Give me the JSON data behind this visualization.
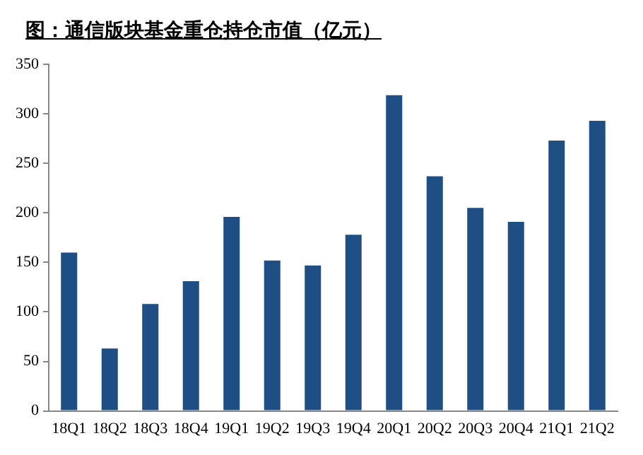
{
  "chart_data": {
    "type": "bar",
    "title": "图：通信版块基金重仓持仓市值（亿元）",
    "categories": [
      "18Q1",
      "18Q2",
      "18Q3",
      "18Q4",
      "19Q1",
      "19Q2",
      "19Q3",
      "19Q4",
      "20Q1",
      "20Q2",
      "20Q3",
      "20Q4",
      "21Q1",
      "21Q2"
    ],
    "values": [
      160,
      63,
      108,
      131,
      196,
      152,
      147,
      178,
      319,
      237,
      205,
      191,
      273,
      293
    ],
    "color": "#1f4e85",
    "ylim": [
      0,
      350
    ],
    "yticks": [
      0,
      50,
      100,
      150,
      200,
      250,
      300,
      350
    ],
    "grid": false,
    "legend": false
  }
}
